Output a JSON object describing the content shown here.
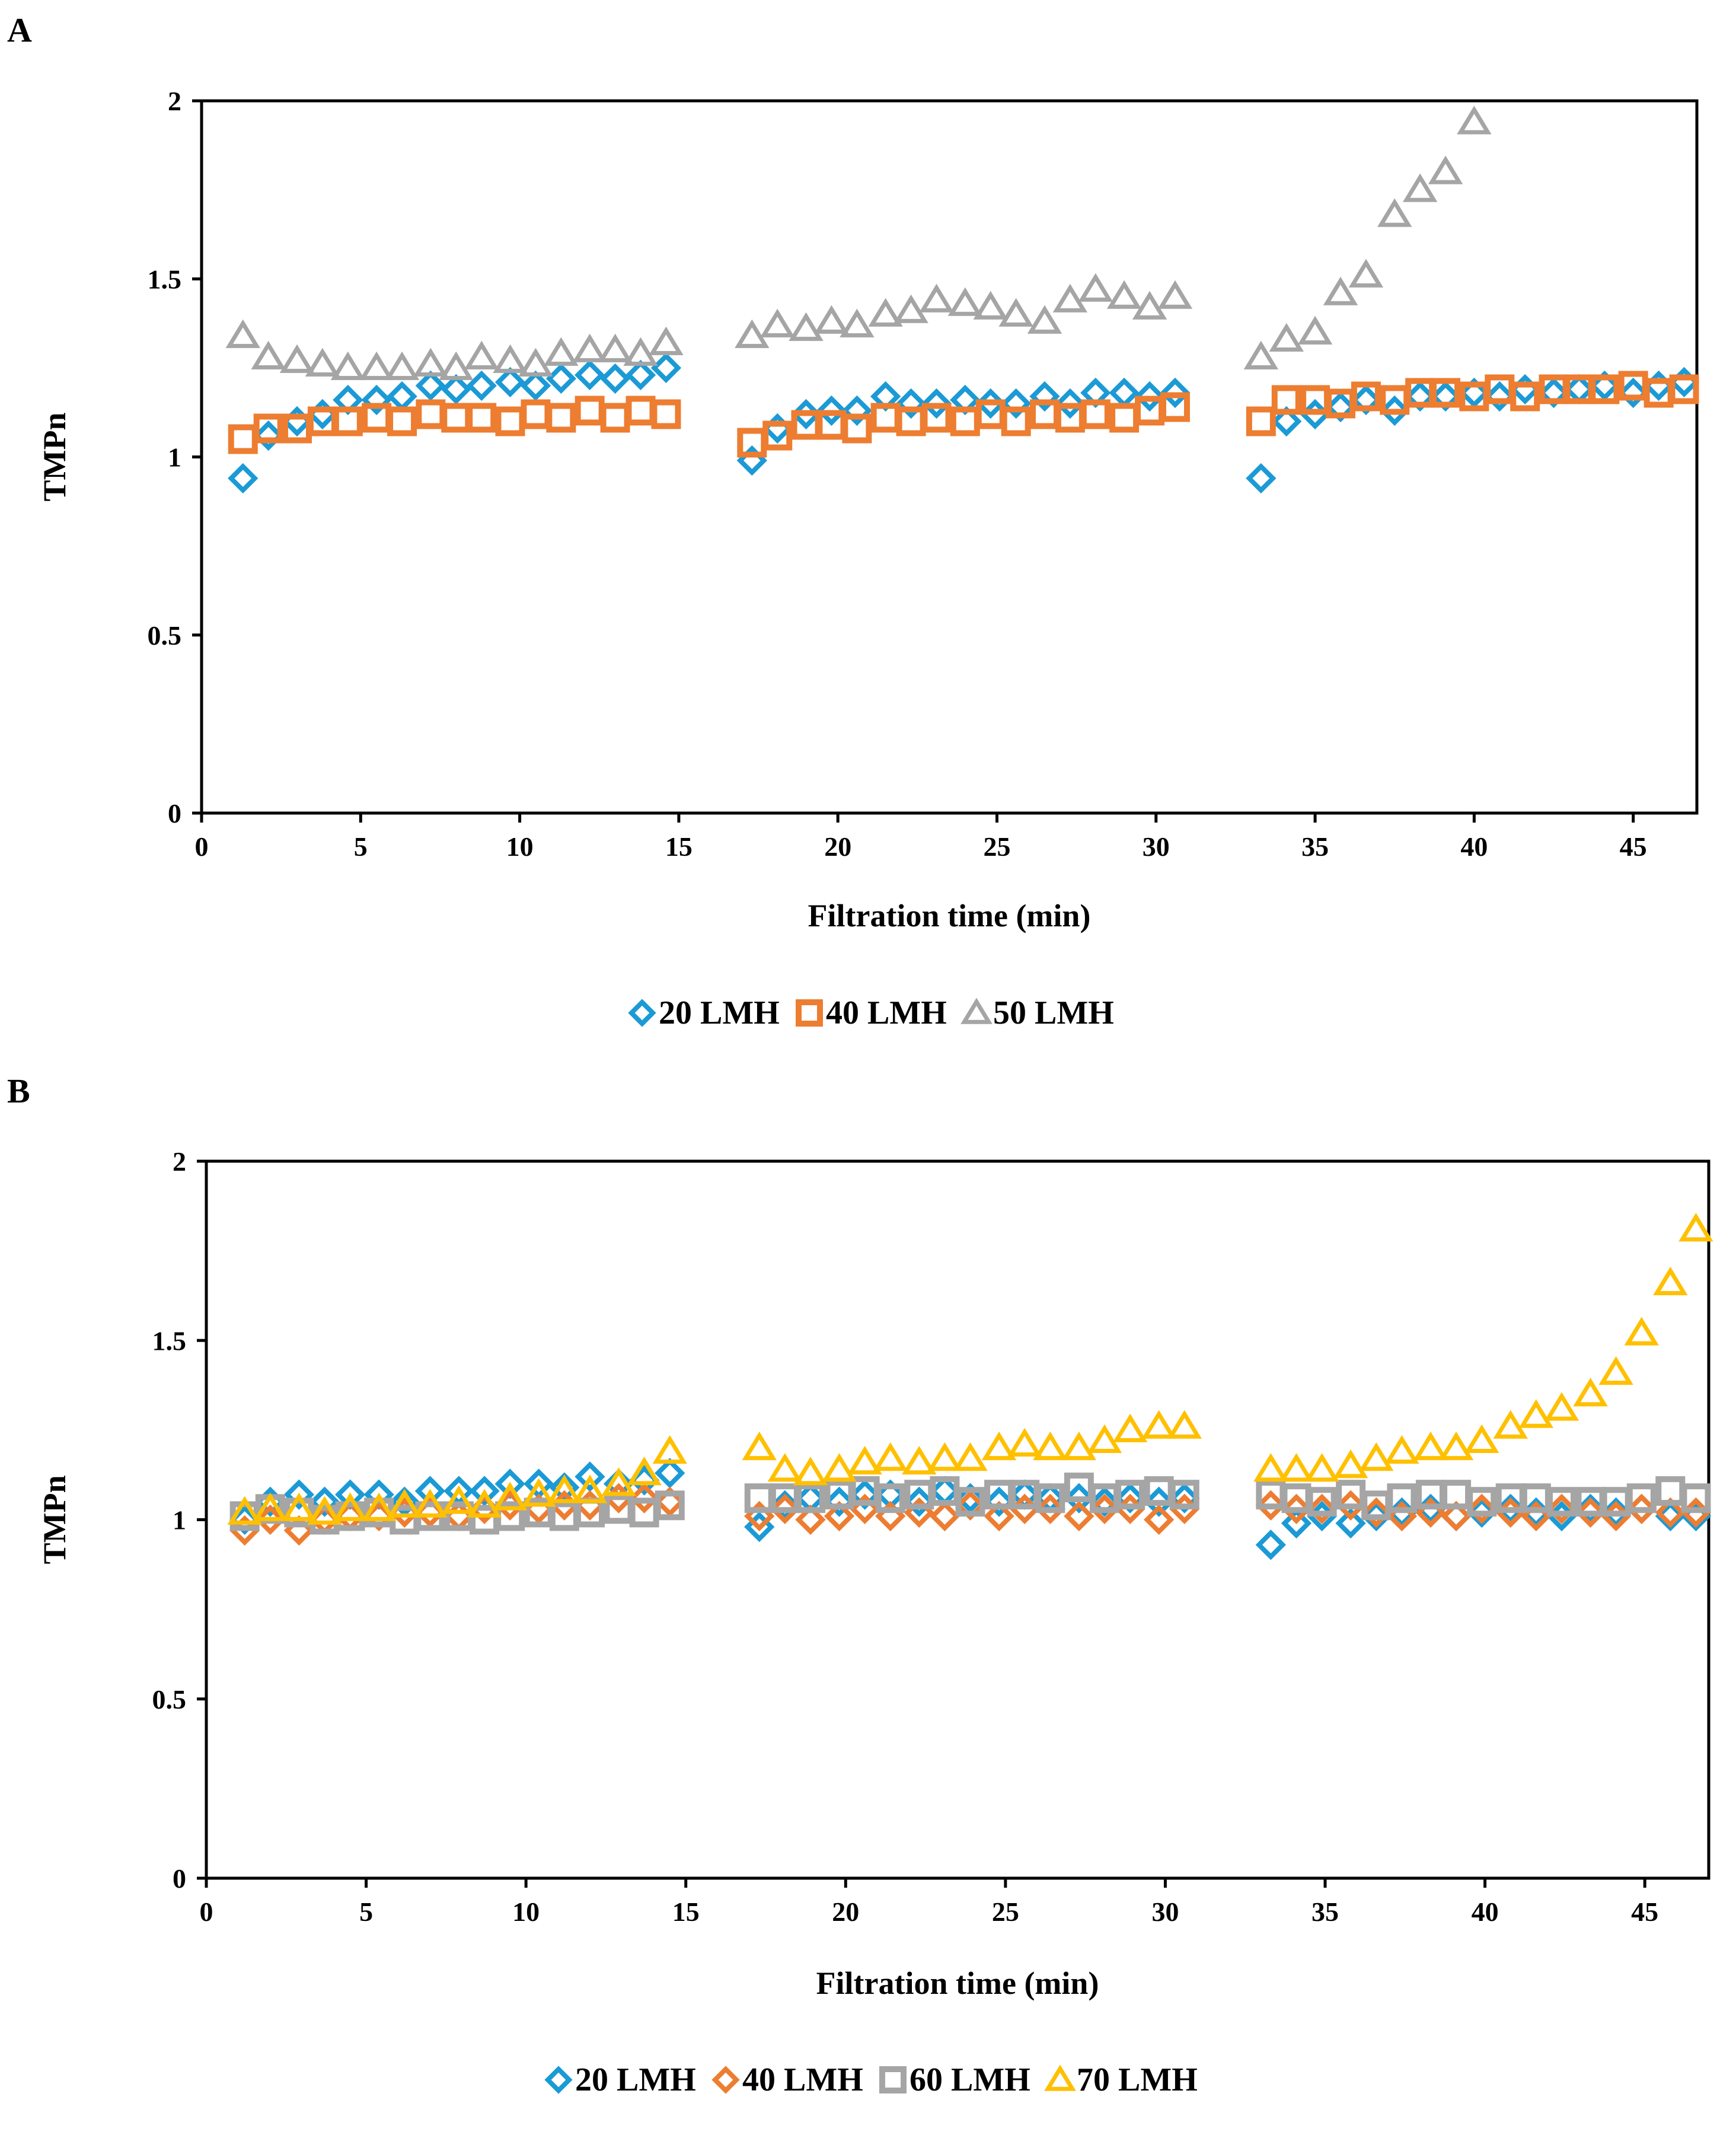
{
  "chart_data": [
    {
      "type": "scatter",
      "panel": "A",
      "xlabel": "Filtration time (min)",
      "ylabel": "TMPn",
      "xlim": [
        0,
        47
      ],
      "ylim": [
        0,
        2
      ],
      "xticks": [
        "0",
        "5",
        "10",
        "15",
        "20",
        "25",
        "30",
        "35",
        "40",
        "45"
      ],
      "yticks": [
        "0",
        "0.5",
        "1",
        "1.5",
        "2"
      ],
      "legend_position": "bottom-center",
      "series": [
        {
          "name": "20 LMH",
          "marker": "diamond",
          "color": "#1b9ad6",
          "x": [
            1.3,
            2.1,
            3.0,
            3.8,
            4.6,
            5.5,
            6.3,
            7.2,
            8.0,
            8.8,
            9.7,
            10.5,
            11.3,
            12.2,
            13.0,
            13.8,
            14.6,
            17.3,
            18.1,
            19.0,
            19.8,
            20.6,
            21.5,
            22.3,
            23.1,
            24.0,
            24.8,
            25.6,
            26.5,
            27.3,
            28.1,
            29.0,
            29.8,
            30.6,
            33.3,
            34.1,
            35.0,
            35.8,
            36.6,
            37.5,
            38.3,
            39.1,
            40.0,
            40.8,
            41.6,
            42.5,
            43.3,
            44.1,
            45.0,
            45.8,
            46.6
          ],
          "y": [
            0.94,
            1.06,
            1.1,
            1.12,
            1.16,
            1.16,
            1.17,
            1.2,
            1.19,
            1.2,
            1.21,
            1.2,
            1.22,
            1.23,
            1.22,
            1.23,
            1.25,
            0.99,
            1.08,
            1.12,
            1.13,
            1.13,
            1.17,
            1.15,
            1.15,
            1.16,
            1.15,
            1.15,
            1.17,
            1.15,
            1.18,
            1.18,
            1.17,
            1.18,
            0.94,
            1.1,
            1.12,
            1.14,
            1.16,
            1.13,
            1.17,
            1.17,
            1.18,
            1.17,
            1.19,
            1.18,
            1.19,
            1.2,
            1.18,
            1.2,
            1.21
          ]
        },
        {
          "name": "40 LMH",
          "marker": "square",
          "color": "#ed7d31",
          "x": [
            1.3,
            2.1,
            3.0,
            3.8,
            4.6,
            5.5,
            6.3,
            7.2,
            8.0,
            8.8,
            9.7,
            10.5,
            11.3,
            12.2,
            13.0,
            13.8,
            14.6,
            17.3,
            18.1,
            19.0,
            19.8,
            20.6,
            21.5,
            22.3,
            23.1,
            24.0,
            24.8,
            25.6,
            26.5,
            27.3,
            28.1,
            29.0,
            29.8,
            30.6,
            33.3,
            34.1,
            35.0,
            35.8,
            36.6,
            37.5,
            38.3,
            39.1,
            40.0,
            40.8,
            41.6,
            42.5,
            43.3,
            44.1,
            45.0,
            45.8,
            46.6
          ],
          "y": [
            1.05,
            1.08,
            1.08,
            1.1,
            1.1,
            1.11,
            1.1,
            1.12,
            1.11,
            1.11,
            1.1,
            1.12,
            1.11,
            1.13,
            1.11,
            1.13,
            1.12,
            1.04,
            1.06,
            1.09,
            1.09,
            1.08,
            1.11,
            1.1,
            1.11,
            1.1,
            1.12,
            1.1,
            1.12,
            1.11,
            1.12,
            1.11,
            1.13,
            1.14,
            1.1,
            1.16,
            1.16,
            1.15,
            1.17,
            1.16,
            1.18,
            1.18,
            1.17,
            1.19,
            1.17,
            1.19,
            1.19,
            1.19,
            1.2,
            1.18,
            1.19
          ]
        },
        {
          "name": "50 LMH",
          "marker": "triangle",
          "color": "#a5a5a5",
          "x": [
            1.3,
            2.1,
            3.0,
            3.8,
            4.6,
            5.5,
            6.3,
            7.2,
            8.0,
            8.8,
            9.7,
            10.5,
            11.3,
            12.2,
            13.0,
            13.8,
            14.6,
            17.3,
            18.1,
            19.0,
            19.8,
            20.6,
            21.5,
            22.3,
            23.1,
            24.0,
            24.8,
            25.6,
            26.5,
            27.3,
            28.1,
            29.0,
            29.8,
            30.6,
            33.3,
            34.1,
            35.0,
            35.8,
            36.6,
            37.5,
            38.3,
            39.1,
            40.0
          ],
          "y": [
            1.34,
            1.28,
            1.27,
            1.26,
            1.25,
            1.25,
            1.25,
            1.26,
            1.25,
            1.28,
            1.27,
            1.26,
            1.29,
            1.3,
            1.3,
            1.29,
            1.32,
            1.34,
            1.37,
            1.36,
            1.38,
            1.37,
            1.4,
            1.41,
            1.44,
            1.43,
            1.42,
            1.4,
            1.38,
            1.44,
            1.47,
            1.45,
            1.42,
            1.45,
            1.28,
            1.33,
            1.35,
            1.46,
            1.51,
            1.68,
            1.75,
            1.8,
            1.94
          ]
        }
      ]
    },
    {
      "type": "scatter",
      "panel": "B",
      "xlabel": "Filtration time (min)",
      "ylabel": "TMPn",
      "xlim": [
        0,
        47
      ],
      "ylim": [
        0,
        2
      ],
      "xticks": [
        "0",
        "5",
        "10",
        "15",
        "20",
        "25",
        "30",
        "35",
        "40",
        "45"
      ],
      "yticks": [
        "0",
        "0.5",
        "1",
        "1.5",
        "2"
      ],
      "legend_position": "bottom-center",
      "series": [
        {
          "name": "20 LMH",
          "marker": "diamond",
          "color": "#1b9ad6",
          "x": [
            1.2,
            2.0,
            2.9,
            3.7,
            4.5,
            5.4,
            6.2,
            7.0,
            7.9,
            8.7,
            9.5,
            10.4,
            11.2,
            12.0,
            12.9,
            13.7,
            14.5,
            17.3,
            18.1,
            18.9,
            19.8,
            20.6,
            21.4,
            22.3,
            23.1,
            23.9,
            24.8,
            25.6,
            26.4,
            27.3,
            28.1,
            28.9,
            29.8,
            30.6,
            33.3,
            34.1,
            34.9,
            35.8,
            36.6,
            37.4,
            38.3,
            39.1,
            39.9,
            40.8,
            41.6,
            42.4,
            43.3,
            44.1,
            44.9,
            45.8,
            46.6
          ],
          "y": [
            1.0,
            1.05,
            1.07,
            1.05,
            1.07,
            1.07,
            1.05,
            1.08,
            1.08,
            1.08,
            1.1,
            1.1,
            1.09,
            1.12,
            1.1,
            1.11,
            1.13,
            0.98,
            1.04,
            1.06,
            1.05,
            1.07,
            1.07,
            1.05,
            1.08,
            1.06,
            1.05,
            1.07,
            1.06,
            1.06,
            1.05,
            1.06,
            1.05,
            1.06,
            0.93,
            0.99,
            1.01,
            0.99,
            1.01,
            1.02,
            1.03,
            1.01,
            1.02,
            1.03,
            1.02,
            1.01,
            1.03,
            1.02,
            1.03,
            1.01,
            1.01
          ]
        },
        {
          "name": "40 LMH",
          "marker": "diamond",
          "color": "#ed7d31",
          "x": [
            1.2,
            2.0,
            2.9,
            3.7,
            4.5,
            5.4,
            6.2,
            7.0,
            7.9,
            8.7,
            9.5,
            10.4,
            11.2,
            12.0,
            12.9,
            13.7,
            14.5,
            17.3,
            18.1,
            18.9,
            19.8,
            20.6,
            21.4,
            22.3,
            23.1,
            23.9,
            24.8,
            25.6,
            26.4,
            27.3,
            28.1,
            28.9,
            29.8,
            30.6,
            33.3,
            34.1,
            34.9,
            35.8,
            36.6,
            37.4,
            38.3,
            39.1,
            39.9,
            40.8,
            41.6,
            42.4,
            43.3,
            44.1,
            44.9,
            45.8,
            46.6
          ],
          "y": [
            0.97,
            1.0,
            0.97,
            1.0,
            1.01,
            1.01,
            1.02,
            1.02,
            1.01,
            1.03,
            1.04,
            1.03,
            1.04,
            1.04,
            1.06,
            1.06,
            1.05,
            1.01,
            1.03,
            1.0,
            1.01,
            1.03,
            1.01,
            1.02,
            1.01,
            1.04,
            1.01,
            1.03,
            1.03,
            1.01,
            1.03,
            1.03,
            1.0,
            1.03,
            1.04,
            1.03,
            1.03,
            1.04,
            1.02,
            1.01,
            1.02,
            1.01,
            1.03,
            1.02,
            1.01,
            1.03,
            1.02,
            1.01,
            1.03,
            1.02,
            1.02
          ]
        },
        {
          "name": "60 LMH",
          "marker": "square",
          "color": "#a5a5a5",
          "x": [
            1.2,
            2.0,
            2.9,
            3.7,
            4.5,
            5.4,
            6.2,
            7.0,
            7.9,
            8.7,
            9.5,
            10.4,
            11.2,
            12.0,
            12.9,
            13.7,
            14.5,
            17.3,
            18.1,
            18.9,
            19.8,
            20.6,
            21.4,
            22.3,
            23.1,
            23.9,
            24.8,
            25.6,
            26.4,
            27.3,
            28.1,
            28.9,
            29.8,
            30.6,
            33.3,
            34.1,
            34.9,
            35.8,
            36.6,
            37.4,
            38.3,
            39.1,
            39.9,
            40.8,
            41.6,
            42.4,
            43.3,
            44.1,
            44.9,
            45.8,
            46.6
          ],
          "y": [
            1.01,
            1.03,
            1.02,
            1.0,
            1.01,
            1.02,
            1.0,
            1.01,
            1.01,
            1.0,
            1.01,
            1.02,
            1.01,
            1.02,
            1.03,
            1.02,
            1.04,
            1.06,
            1.06,
            1.06,
            1.07,
            1.08,
            1.06,
            1.07,
            1.08,
            1.05,
            1.07,
            1.07,
            1.06,
            1.09,
            1.06,
            1.07,
            1.08,
            1.07,
            1.07,
            1.06,
            1.05,
            1.07,
            1.04,
            1.06,
            1.07,
            1.07,
            1.05,
            1.06,
            1.06,
            1.05,
            1.05,
            1.05,
            1.06,
            1.08,
            1.06
          ]
        },
        {
          "name": "70 LMH",
          "marker": "triangle",
          "color": "#ffc000",
          "x": [
            1.2,
            2.0,
            2.9,
            3.7,
            4.5,
            5.4,
            6.2,
            7.0,
            7.9,
            8.7,
            9.5,
            10.4,
            11.2,
            12.0,
            12.9,
            13.7,
            14.5,
            17.3,
            18.1,
            18.9,
            19.8,
            20.6,
            21.4,
            22.3,
            23.1,
            23.9,
            24.8,
            25.6,
            26.4,
            27.3,
            28.1,
            28.9,
            29.8,
            30.6,
            33.3,
            34.1,
            34.9,
            35.8,
            36.6,
            37.4,
            38.3,
            39.1,
            39.9,
            40.8,
            41.6,
            42.4,
            43.3,
            44.1,
            44.9,
            45.8,
            46.6
          ],
          "y": [
            1.02,
            1.03,
            1.03,
            1.02,
            1.03,
            1.03,
            1.04,
            1.04,
            1.05,
            1.04,
            1.06,
            1.07,
            1.08,
            1.08,
            1.1,
            1.13,
            1.19,
            1.2,
            1.14,
            1.13,
            1.14,
            1.16,
            1.17,
            1.16,
            1.17,
            1.17,
            1.2,
            1.21,
            1.2,
            1.2,
            1.22,
            1.25,
            1.26,
            1.26,
            1.14,
            1.14,
            1.14,
            1.15,
            1.17,
            1.19,
            1.2,
            1.2,
            1.22,
            1.26,
            1.29,
            1.31,
            1.35,
            1.41,
            1.52,
            1.66,
            1.81
          ]
        }
      ]
    }
  ]
}
